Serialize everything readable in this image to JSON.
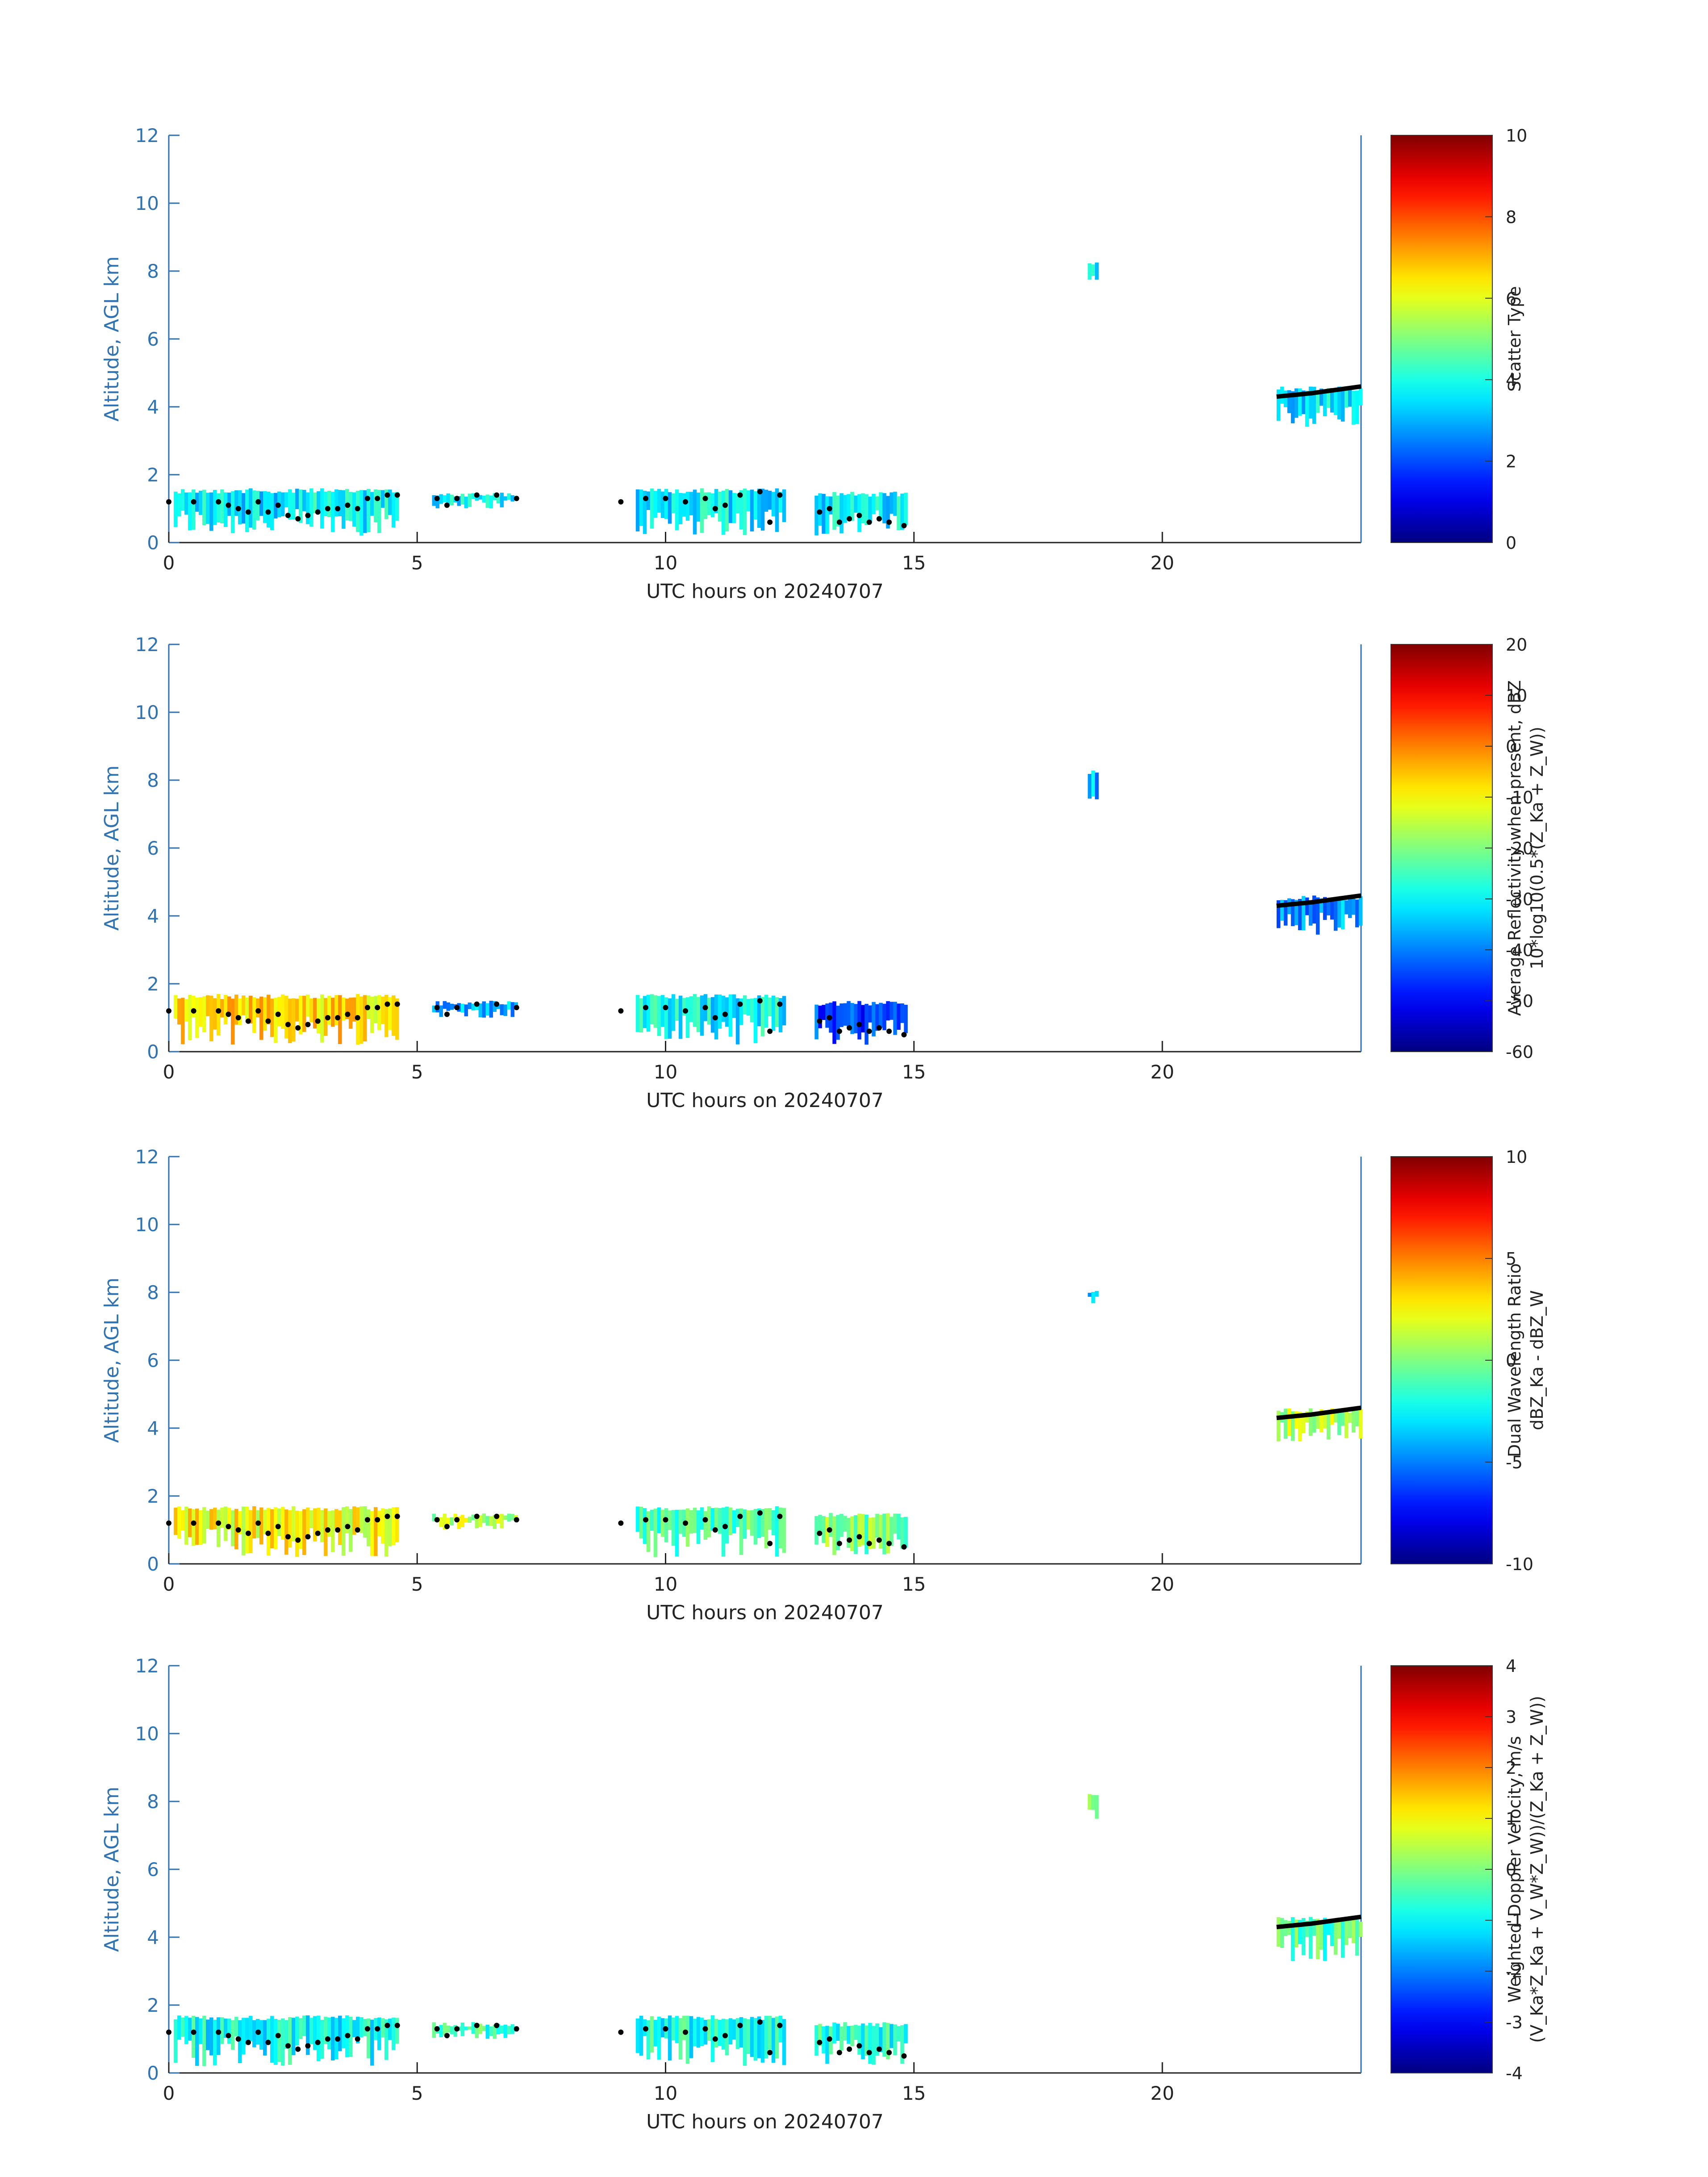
{
  "chart_data": [
    {
      "type": "heatmap",
      "xlabel": "UTC hours on 20240707",
      "ylabel": "Altitude, AGL km",
      "xlim": [
        0,
        24
      ],
      "ylim": [
        0,
        12
      ],
      "xticks": [
        "0",
        "5",
        "10",
        "15",
        "20"
      ],
      "yticks": [
        "0",
        "2",
        "4",
        "6",
        "8",
        "10",
        "12"
      ],
      "colorbar": {
        "label_lines": [
          "Scatter Type"
        ],
        "limits": [
          0,
          10
        ],
        "ticks": [
          "0",
          "2",
          "4",
          "6",
          "8",
          "10"
        ],
        "colormap": "jet"
      },
      "cloud_regions": [
        {
          "x": [
            0.1,
            4.6
          ],
          "base_km": 0.2,
          "top_km": 1.6,
          "value": 3.6
        },
        {
          "x": [
            5.3,
            7.0
          ],
          "base_km": 1.0,
          "top_km": 1.5,
          "value": 3.6
        },
        {
          "x": [
            9.4,
            12.4
          ],
          "base_km": 0.2,
          "top_km": 1.6,
          "value": 3.6
        },
        {
          "x": [
            13.0,
            14.8
          ],
          "base_km": 0.2,
          "top_km": 1.5,
          "value": 3.6
        },
        {
          "x": [
            18.5,
            18.7
          ],
          "base_km": 7.3,
          "top_km": 8.3,
          "value": 3.8
        },
        {
          "x": [
            22.3,
            24.0
          ],
          "base_km": 3.4,
          "top_km": 4.6,
          "value": 3.6
        }
      ]
    },
    {
      "type": "heatmap",
      "xlabel": "UTC hours on 20240707",
      "ylabel": "Altitude, AGL km",
      "xlim": [
        0,
        24
      ],
      "ylim": [
        0,
        12
      ],
      "xticks": [
        "0",
        "5",
        "10",
        "15",
        "20"
      ],
      "yticks": [
        "0",
        "2",
        "4",
        "6",
        "8",
        "10",
        "12"
      ],
      "colorbar": {
        "label_lines": [
          "Average Reflectivity when present, dBZ",
          "10*log10(0.5*(Z_Ka + Z_W))"
        ],
        "limits": [
          -60,
          20
        ],
        "ticks": [
          "-60",
          "-50",
          "-40",
          "-30",
          "-20",
          "-10",
          "0",
          "10",
          "20"
        ],
        "colormap": "jet"
      },
      "cloud_regions": [
        {
          "x": [
            0.1,
            4.6
          ],
          "base_km": 0.2,
          "top_km": 1.7,
          "value": -8
        },
        {
          "x": [
            5.3,
            7.0
          ],
          "base_km": 1.0,
          "top_km": 1.5,
          "value": -35
        },
        {
          "x": [
            9.4,
            12.4
          ],
          "base_km": 0.2,
          "top_km": 1.7,
          "value": -30
        },
        {
          "x": [
            13.0,
            14.8
          ],
          "base_km": 0.2,
          "top_km": 1.5,
          "value": -45
        },
        {
          "x": [
            18.5,
            18.7
          ],
          "base_km": 7.3,
          "top_km": 8.3,
          "value": -35
        },
        {
          "x": [
            22.3,
            24.0
          ],
          "base_km": 3.4,
          "top_km": 4.6,
          "value": -38
        }
      ]
    },
    {
      "type": "heatmap",
      "xlabel": "UTC hours on 20240707",
      "ylabel": "Altitude, AGL km",
      "xlim": [
        0,
        24
      ],
      "ylim": [
        0,
        12
      ],
      "xticks": [
        "0",
        "5",
        "10",
        "15",
        "20"
      ],
      "yticks": [
        "0",
        "2",
        "4",
        "6",
        "8",
        "10",
        "12"
      ],
      "colorbar": {
        "label_lines": [
          "Dual Wavelength Ratio",
          "dBZ_Ka - dBZ_W"
        ],
        "limits": [
          -10,
          10
        ],
        "ticks": [
          "-10",
          "-5",
          "0",
          "5",
          "10"
        ],
        "colormap": "jet"
      },
      "cloud_regions": [
        {
          "x": [
            0.1,
            4.6
          ],
          "base_km": 0.2,
          "top_km": 1.7,
          "value": 2.5
        },
        {
          "x": [
            5.3,
            7.0
          ],
          "base_km": 1.0,
          "top_km": 1.5,
          "value": 1
        },
        {
          "x": [
            9.4,
            12.4
          ],
          "base_km": 0.2,
          "top_km": 1.7,
          "value": -1
        },
        {
          "x": [
            13.0,
            14.8
          ],
          "base_km": 0.2,
          "top_km": 1.5,
          "value": 0
        },
        {
          "x": [
            18.5,
            18.7
          ],
          "base_km": 7.6,
          "top_km": 8.1,
          "value": -3
        },
        {
          "x": [
            22.3,
            24.0
          ],
          "base_km": 3.6,
          "top_km": 4.6,
          "value": 1
        }
      ]
    },
    {
      "type": "heatmap",
      "xlabel": "UTC hours on 20240707",
      "ylabel": "Altitude, AGL km",
      "xlim": [
        0,
        24
      ],
      "ylim": [
        0,
        12
      ],
      "xticks": [
        "0",
        "5",
        "10",
        "15",
        "20"
      ],
      "yticks": [
        "0",
        "2",
        "4",
        "6",
        "8",
        "10",
        "12"
      ],
      "colorbar": {
        "label_lines": [
          "Weighted Doppler Velocity, m/s",
          "(V_Ka*Z_Ka + V_W*Z_W))/(Z_Ka + Z_W))"
        ],
        "limits": [
          -4,
          4
        ],
        "ticks": [
          "-4",
          "-3",
          "-2",
          "-1",
          "0",
          "1",
          "2",
          "3",
          "4"
        ],
        "colormap": "jet"
      },
      "cloud_regions": [
        {
          "x": [
            0.1,
            4.6
          ],
          "base_km": 0.2,
          "top_km": 1.7,
          "value": -0.9
        },
        {
          "x": [
            5.3,
            7.0
          ],
          "base_km": 1.0,
          "top_km": 1.5,
          "value": -0.5
        },
        {
          "x": [
            9.4,
            12.4
          ],
          "base_km": 0.2,
          "top_km": 1.7,
          "value": -0.8
        },
        {
          "x": [
            13.0,
            14.8
          ],
          "base_km": 0.2,
          "top_km": 1.5,
          "value": -0.7
        },
        {
          "x": [
            18.5,
            18.7
          ],
          "base_km": 7.3,
          "top_km": 8.3,
          "value": -0.4
        },
        {
          "x": [
            22.3,
            24.0
          ],
          "base_km": 3.3,
          "top_km": 4.6,
          "value": -0.4
        }
      ]
    }
  ],
  "cloud_base_points": [
    [
      0.0,
      1.2
    ],
    [
      0.5,
      1.2
    ],
    [
      1.0,
      1.2
    ],
    [
      1.2,
      1.1
    ],
    [
      1.4,
      1.0
    ],
    [
      1.6,
      0.9
    ],
    [
      1.8,
      1.2
    ],
    [
      2.0,
      0.9
    ],
    [
      2.2,
      1.1
    ],
    [
      2.4,
      0.8
    ],
    [
      2.6,
      0.7
    ],
    [
      2.8,
      0.8
    ],
    [
      3.0,
      0.9
    ],
    [
      3.2,
      1.0
    ],
    [
      3.4,
      1.0
    ],
    [
      3.6,
      1.1
    ],
    [
      3.8,
      1.0
    ],
    [
      4.0,
      1.3
    ],
    [
      4.2,
      1.3
    ],
    [
      4.4,
      1.4
    ],
    [
      4.6,
      1.4
    ],
    [
      5.4,
      1.3
    ],
    [
      5.6,
      1.1
    ],
    [
      5.8,
      1.3
    ],
    [
      6.2,
      1.4
    ],
    [
      6.6,
      1.4
    ],
    [
      7.0,
      1.3
    ],
    [
      9.1,
      1.2
    ],
    [
      9.6,
      1.3
    ],
    [
      10.0,
      1.3
    ],
    [
      10.4,
      1.2
    ],
    [
      10.8,
      1.3
    ],
    [
      11.0,
      1.0
    ],
    [
      11.2,
      1.1
    ],
    [
      11.5,
      1.4
    ],
    [
      11.9,
      1.5
    ],
    [
      12.1,
      0.6
    ],
    [
      12.3,
      1.4
    ],
    [
      13.1,
      0.9
    ],
    [
      13.3,
      1.0
    ],
    [
      13.5,
      0.6
    ],
    [
      13.7,
      0.7
    ],
    [
      13.9,
      0.8
    ],
    [
      14.1,
      0.6
    ],
    [
      14.3,
      0.7
    ],
    [
      14.5,
      0.6
    ],
    [
      14.8,
      0.5
    ]
  ],
  "cloud_top_line": {
    "x": [
      22.3,
      23.0,
      23.5,
      24.0
    ],
    "y": [
      4.3,
      4.4,
      4.5,
      4.6
    ]
  }
}
